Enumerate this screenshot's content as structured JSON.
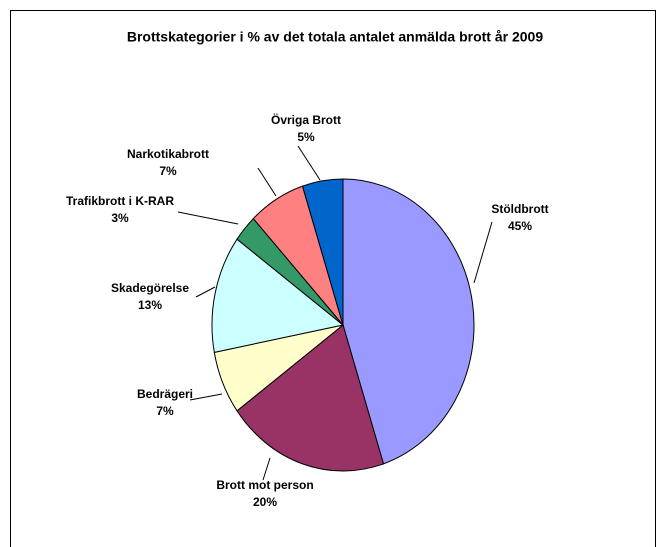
{
  "chart_data": {
    "type": "pie",
    "title": "Brottskategorier i % av det totala antalet anmälda brott år 2009",
    "categories": [
      "Stöldbrott",
      "Brott mot person",
      "Bedrägeri",
      "Skadegörelse",
      "Trafikbrott i K-RAR",
      "Narkotikabrott",
      "Övriga Brott"
    ],
    "values": [
      45,
      20,
      7,
      13,
      3,
      7,
      5
    ],
    "value_labels": [
      "45%",
      "20%",
      "7%",
      "13%",
      "3%",
      "7%",
      "5%"
    ],
    "colors": [
      "#9999ff",
      "#993366",
      "#ffffcc",
      "#ccffff",
      "#339966",
      "#ff8080",
      "#0066cc"
    ]
  }
}
